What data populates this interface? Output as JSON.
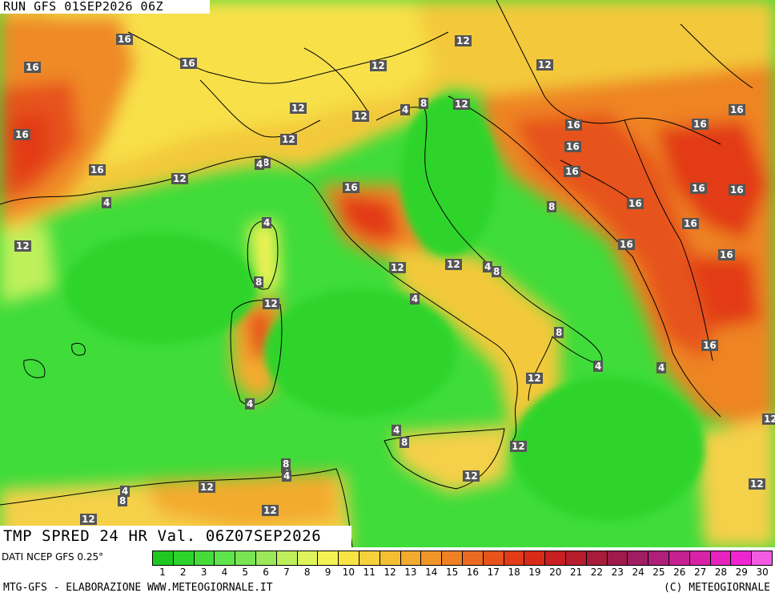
{
  "header": {
    "run_label": "RUN GFS 01SEP2026 06Z"
  },
  "footer": {
    "valid_label": "TMP SPRED 24 HR Val. 06Z07SEP2026",
    "source": "DATI NCEP GFS 0.25°",
    "credit_left": "MTG-GFS - ELABORAZIONE WWW.METEOGIORNALE.IT",
    "credit_right": "(C) METEOGIORNALE"
  },
  "legend": {
    "ticks": [
      "1",
      "2",
      "3",
      "4",
      "5",
      "6",
      "7",
      "8",
      "9",
      "10",
      "11",
      "12",
      "13",
      "14",
      "15",
      "16",
      "17",
      "18",
      "19",
      "20",
      "21",
      "22",
      "23",
      "24",
      "25",
      "26",
      "27",
      "28",
      "29",
      "30"
    ],
    "colors": [
      "#1fc81f",
      "#2ed42b",
      "#45dc3a",
      "#5ee44a",
      "#7ae455",
      "#9be85b",
      "#bff05c",
      "#dff35d",
      "#f5f354",
      "#f8e445",
      "#f7d13b",
      "#f5bf34",
      "#f3ab2e",
      "#f09628",
      "#ed8124",
      "#ea6b20",
      "#e6531b",
      "#e23b18",
      "#d92a17",
      "#c71f1f",
      "#b51d2c",
      "#a81c3a",
      "#9e1b4b",
      "#a01d62",
      "#b01f7a",
      "#c52190",
      "#d822a8",
      "#e623be",
      "#ef25d3",
      "#f45be3"
    ]
  },
  "map": {
    "region": "Italy and Central Mediterranean",
    "contour_values": [
      {
        "v": "16"
      },
      {
        "v": "12"
      },
      {
        "v": "16"
      },
      {
        "v": "16"
      },
      {
        "v": "12"
      },
      {
        "v": "12"
      },
      {
        "v": "12"
      },
      {
        "v": "16"
      },
      {
        "v": "16"
      },
      {
        "v": "12"
      },
      {
        "v": "4"
      },
      {
        "v": "8"
      },
      {
        "v": "12"
      },
      {
        "v": "12"
      },
      {
        "v": "16"
      },
      {
        "v": "16"
      },
      {
        "v": "16"
      },
      {
        "v": "16"
      },
      {
        "v": "12"
      },
      {
        "v": "8"
      },
      {
        "v": "4"
      },
      {
        "v": "16"
      },
      {
        "v": "16"
      },
      {
        "v": "16"
      },
      {
        "v": "16"
      },
      {
        "v": "8"
      },
      {
        "v": "16"
      },
      {
        "v": "16"
      },
      {
        "v": "4"
      },
      {
        "v": "16"
      },
      {
        "v": "12"
      },
      {
        "v": "12"
      },
      {
        "v": "12"
      },
      {
        "v": "4"
      },
      {
        "v": "8"
      },
      {
        "v": "8"
      },
      {
        "v": "4"
      },
      {
        "v": "12"
      },
      {
        "v": "8"
      },
      {
        "v": "4"
      },
      {
        "v": "12"
      },
      {
        "v": "4"
      },
      {
        "v": "4"
      },
      {
        "v": "16"
      },
      {
        "v": "4"
      },
      {
        "v": "8"
      },
      {
        "v": "4"
      },
      {
        "v": "12"
      },
      {
        "v": "4"
      },
      {
        "v": "4"
      },
      {
        "v": "8"
      },
      {
        "v": "12"
      },
      {
        "v": "12"
      },
      {
        "v": "4"
      },
      {
        "v": "8"
      },
      {
        "v": "12"
      },
      {
        "v": "12"
      },
      {
        "v": "16"
      },
      {
        "v": "12"
      },
      {
        "v": "12"
      }
    ]
  }
}
